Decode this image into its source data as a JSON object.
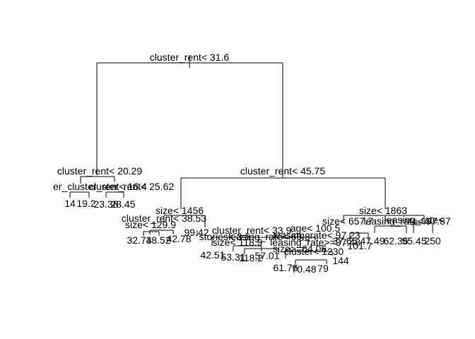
{
  "colors": {
    "background": "#ffffff",
    "ink": "#000000"
  },
  "tree": {
    "split_labels": [
      "cluster_rent< 31.6",
      "cluster_rent< 20.29",
      "cluster_rent< 45.75",
      "er_cluster_rent< 16.4",
      "cluster_rent< 25.62",
      "size< 1456",
      "size< 1863",
      "cluster_rent< 38.53",
      "size< 129.9",
      "size< 657.7",
      "leasing_rate< 97.87",
      "leasing_rate<",
      "cluster_rent< 33.9",
      "age< 100.5",
      "leasing_rate< 97.23",
      "stories< 3.5",
      "leasing_rate< 69.8",
      "size< 118.9",
      "leasing_rate>=97.48",
      "size>=64.06",
      "cluster< 1230"
    ],
    "leaf_labels": [
      "14",
      "19.2",
      "23.38",
      "28.45",
      "32.74",
      "38.52",
      "42.78",
      "99.42",
      "42.51",
      "53.31",
      "118.2",
      "57.01",
      "101.7",
      "37.65",
      "47.49",
      "62.35",
      "95.45",
      "250",
      "61.76",
      "70.48",
      "79",
      "144"
    ]
  }
}
